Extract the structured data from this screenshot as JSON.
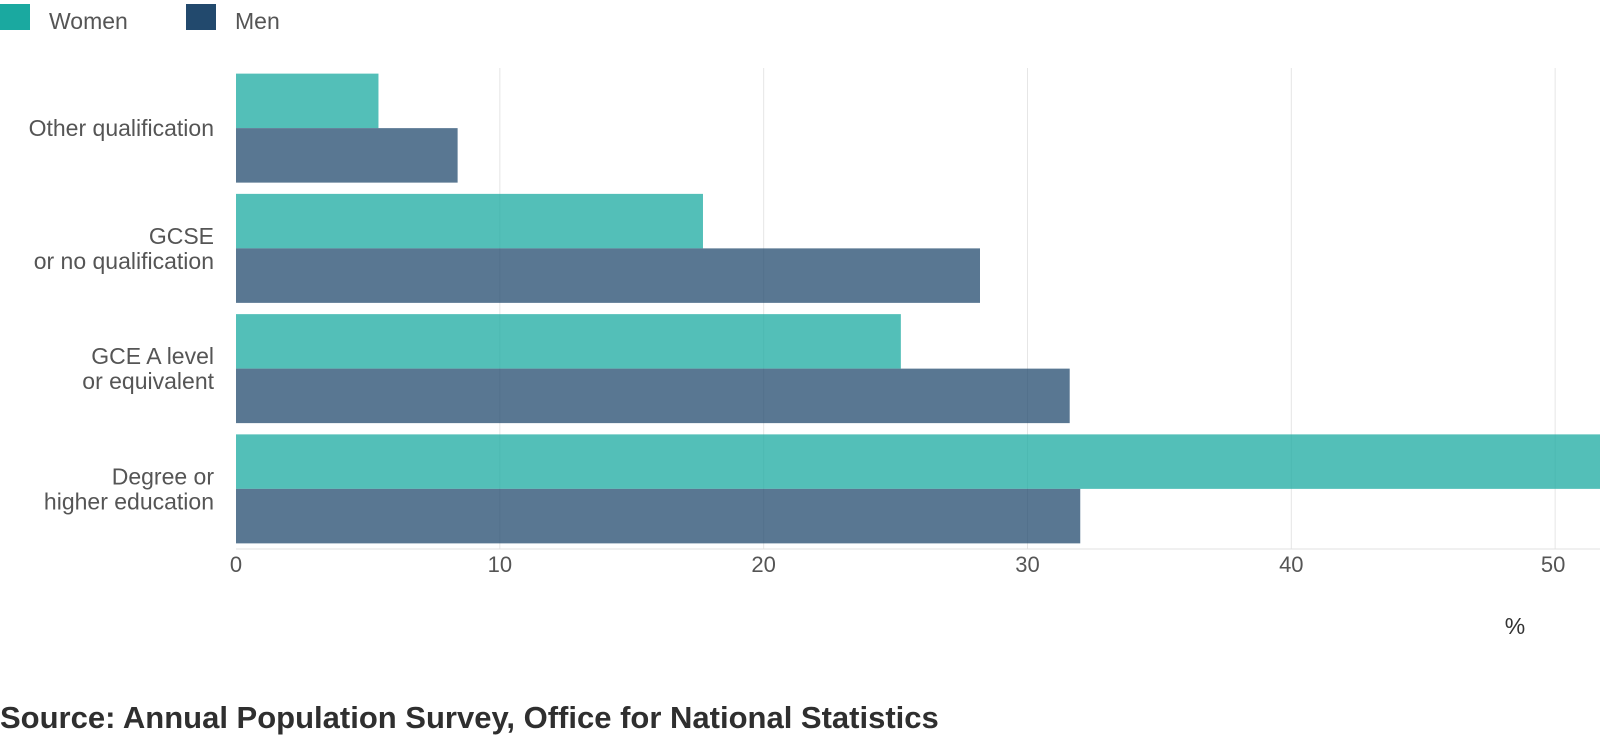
{
  "chart_data": {
    "type": "bar",
    "orientation": "horizontal",
    "categories": [
      [
        "Other qualification"
      ],
      [
        "GCSE",
        "or no qualification"
      ],
      [
        "GCE A level",
        "or equivalent"
      ],
      [
        "Degree or",
        "higher education"
      ]
    ],
    "series": [
      {
        "name": "Women",
        "color": "#1aa9a0",
        "values": [
          5.4,
          17.7,
          25.2,
          52
        ]
      },
      {
        "name": "Men",
        "color": "#22496d",
        "values": [
          8.4,
          28.2,
          31.6,
          32.0
        ]
      }
    ],
    "xticks": [
      "0",
      "10",
      "20",
      "30",
      "40",
      "50"
    ],
    "xlim": [
      0,
      51.7
    ],
    "xlabel": "%",
    "grid": true,
    "legend_position": "top-left"
  },
  "source": "Source: Annual Population Survey, Office for National Statistics"
}
